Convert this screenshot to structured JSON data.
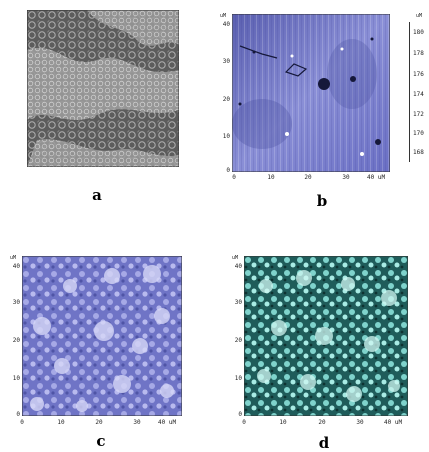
{
  "panels": [
    {
      "label": "a"
    },
    {
      "label": "b",
      "unit_y": "uM",
      "unit_x": "uM",
      "y_ticks": [
        "40",
        "30",
        "20",
        "10",
        "0"
      ],
      "x_ticks": [
        "0",
        "10",
        "20",
        "30",
        "40 uM"
      ],
      "scale_ticks": [
        "180",
        "178",
        "176",
        "174",
        "172",
        "170",
        "168"
      ],
      "scale_unit": "uM"
    },
    {
      "label": "c",
      "unit_y": "uM",
      "y_ticks": [
        "40",
        "30",
        "20",
        "10",
        "0"
      ],
      "x_ticks": [
        "0",
        "10",
        "20",
        "30",
        "40 uM"
      ]
    },
    {
      "label": "d",
      "unit_y": "uM",
      "y_ticks": [
        "40",
        "30",
        "20",
        "10",
        "0"
      ],
      "x_ticks": [
        "0",
        "10",
        "20",
        "30",
        "40 uM"
      ]
    }
  ]
}
